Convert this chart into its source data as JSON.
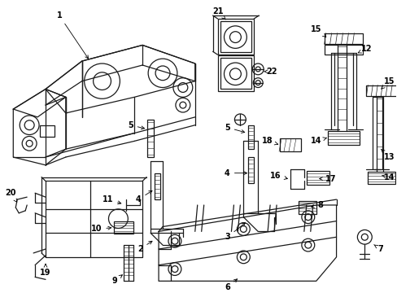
{
  "background": "#ffffff",
  "line_color": "#1a1a1a",
  "figsize": [
    4.89,
    3.6
  ],
  "dpi": 100,
  "label_fontsize": 7.0,
  "label_fontweight": "bold"
}
